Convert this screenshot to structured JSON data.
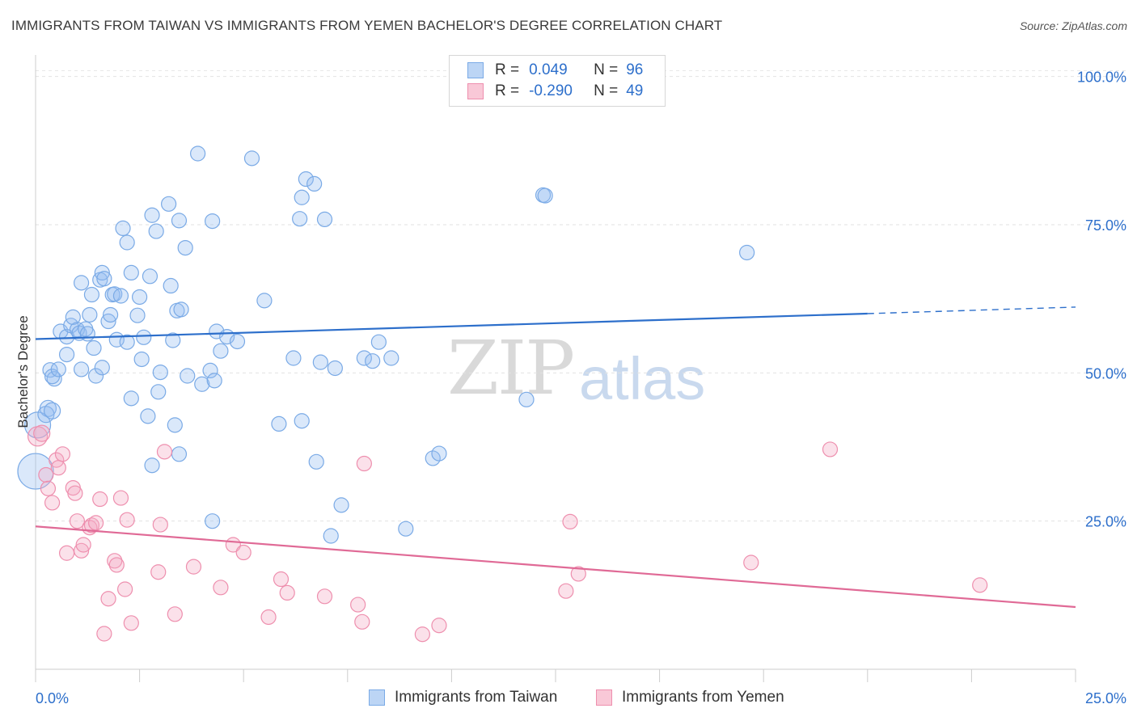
{
  "title": "IMMIGRANTS FROM TAIWAN VS IMMIGRANTS FROM YEMEN BACHELOR'S DEGREE CORRELATION CHART",
  "source": "Source: ZipAtlas.com",
  "watermark": {
    "part1": "ZIP",
    "part2": "atlas"
  },
  "legend_top": [
    {
      "r_label": "R =",
      "r_value": "0.049",
      "n_label": "N =",
      "n_value": "96"
    },
    {
      "r_label": "R =",
      "r_value": "-0.290",
      "n_label": "N =",
      "n_value": "49"
    }
  ],
  "legend_bottom": [
    "Immigrants from Taiwan",
    "Immigrants from Yemen"
  ],
  "colors": {
    "taiwan": "#7aaae6",
    "yemen": "#ee8fae",
    "taiwan_line": "#2d6fcb",
    "yemen_line": "#e06a96",
    "axis_text": "#2d6fcb"
  },
  "chart_data": {
    "type": "scatter",
    "xlabel": "",
    "ylabel": "Bachelor's Degree",
    "xlim": [
      0,
      25
    ],
    "ylim": [
      0,
      102
    ],
    "x_tick_labels": [
      "0.0%",
      "25.0%"
    ],
    "y_tick_labels": [
      "100.0%",
      "75.0%",
      "50.0%",
      "25.0%"
    ],
    "y_ticks": [
      100,
      75,
      50,
      25
    ],
    "grid": true,
    "legend_placement": "top-center",
    "series": [
      {
        "name": "Immigrants from Taiwan",
        "trend": {
          "x0": 0,
          "y0": 55.7,
          "x1": 20,
          "y1": 60.0,
          "dash_to_x": 25,
          "dash_y": 61.1
        },
        "points": [
          [
            0.0,
            33.4,
            22
          ],
          [
            0.05,
            41.2,
            16
          ],
          [
            0.3,
            44.0,
            10
          ],
          [
            0.25,
            43.0,
            10
          ],
          [
            0.4,
            43.6,
            10
          ],
          [
            0.35,
            50.5,
            9
          ],
          [
            0.45,
            49.0,
            9
          ],
          [
            0.4,
            49.4,
            9
          ],
          [
            0.55,
            50.6,
            9
          ],
          [
            0.6,
            57.0,
            9
          ],
          [
            0.75,
            56.1,
            9
          ],
          [
            0.75,
            53.1,
            9
          ],
          [
            0.85,
            58.0,
            9
          ],
          [
            0.9,
            59.4,
            9
          ],
          [
            1.0,
            57.3,
            9
          ],
          [
            1.05,
            56.7,
            9
          ],
          [
            1.1,
            65.2,
            9
          ],
          [
            1.1,
            50.6,
            9
          ],
          [
            1.2,
            57.4,
            9
          ],
          [
            1.25,
            56.6,
            9
          ],
          [
            1.3,
            59.8,
            9
          ],
          [
            1.35,
            63.2,
            9
          ],
          [
            1.4,
            54.2,
            9
          ],
          [
            1.45,
            49.5,
            9
          ],
          [
            1.55,
            65.7,
            9
          ],
          [
            1.6,
            66.9,
            9
          ],
          [
            1.6,
            50.9,
            9
          ],
          [
            1.65,
            65.9,
            9
          ],
          [
            1.75,
            58.7,
            9
          ],
          [
            1.8,
            59.8,
            9
          ],
          [
            1.85,
            63.2,
            9
          ],
          [
            1.9,
            63.3,
            9
          ],
          [
            1.95,
            55.6,
            9
          ],
          [
            2.05,
            63.0,
            9
          ],
          [
            2.1,
            74.4,
            9
          ],
          [
            2.2,
            72.0,
            9
          ],
          [
            2.2,
            55.2,
            9
          ],
          [
            2.3,
            66.9,
            9
          ],
          [
            2.3,
            45.7,
            9
          ],
          [
            2.45,
            59.7,
            9
          ],
          [
            2.5,
            62.8,
            9
          ],
          [
            2.55,
            52.3,
            9
          ],
          [
            2.6,
            56.0,
            9
          ],
          [
            2.7,
            42.7,
            9
          ],
          [
            2.75,
            66.3,
            9
          ],
          [
            2.8,
            76.6,
            9
          ],
          [
            2.8,
            34.4,
            9
          ],
          [
            2.9,
            73.9,
            9
          ],
          [
            2.95,
            46.8,
            9
          ],
          [
            3.0,
            50.1,
            9
          ],
          [
            3.2,
            78.5,
            9
          ],
          [
            3.25,
            64.7,
            9
          ],
          [
            3.3,
            55.5,
            9
          ],
          [
            3.35,
            41.2,
            9
          ],
          [
            3.4,
            60.5,
            9
          ],
          [
            3.5,
            60.7,
            9
          ],
          [
            3.45,
            75.7,
            9
          ],
          [
            3.45,
            36.3,
            9
          ],
          [
            3.6,
            71.1,
            9
          ],
          [
            3.65,
            49.5,
            9
          ],
          [
            3.9,
            87.0,
            9
          ],
          [
            4.0,
            48.1,
            9
          ],
          [
            4.2,
            50.4,
            9
          ],
          [
            4.25,
            75.6,
            9
          ],
          [
            4.25,
            25.0,
            9
          ],
          [
            4.3,
            48.7,
            9
          ],
          [
            4.35,
            57.0,
            9
          ],
          [
            4.45,
            53.7,
            9
          ],
          [
            4.6,
            56.1,
            9
          ],
          [
            4.85,
            55.3,
            9
          ],
          [
            5.2,
            86.2,
            9
          ],
          [
            5.5,
            62.2,
            9
          ],
          [
            5.85,
            41.4,
            9
          ],
          [
            6.2,
            52.5,
            9
          ],
          [
            6.35,
            76.0,
            9
          ],
          [
            6.4,
            41.9,
            9
          ],
          [
            6.4,
            79.6,
            9
          ],
          [
            6.5,
            82.7,
            9
          ],
          [
            6.7,
            81.9,
            9
          ],
          [
            6.75,
            35.0,
            9
          ],
          [
            6.85,
            51.8,
            9
          ],
          [
            6.95,
            75.9,
            9
          ],
          [
            7.1,
            22.5,
            9
          ],
          [
            7.2,
            50.8,
            9
          ],
          [
            7.35,
            27.7,
            9
          ],
          [
            7.9,
            52.5,
            9
          ],
          [
            8.1,
            52.0,
            9
          ],
          [
            8.25,
            55.2,
            9
          ],
          [
            8.55,
            52.5,
            9
          ],
          [
            8.9,
            23.7,
            9
          ],
          [
            9.55,
            35.6,
            9
          ],
          [
            9.7,
            36.4,
            9
          ],
          [
            11.8,
            45.5,
            9
          ],
          [
            12.2,
            80.0,
            9
          ],
          [
            12.25,
            79.9,
            9
          ],
          [
            17.1,
            70.3,
            9
          ]
        ]
      },
      {
        "name": "Immigrants from Yemen",
        "trend": {
          "x0": 0,
          "y0": 24.1,
          "x1": 25,
          "y1": 10.5
        },
        "points": [
          [
            0.05,
            39.3,
            12
          ],
          [
            0.15,
            39.8,
            10
          ],
          [
            0.25,
            32.8,
            9
          ],
          [
            0.3,
            30.5,
            9
          ],
          [
            0.4,
            28.1,
            9
          ],
          [
            0.5,
            35.3,
            9
          ],
          [
            0.55,
            34.0,
            9
          ],
          [
            0.65,
            36.3,
            9
          ],
          [
            0.75,
            19.6,
            9
          ],
          [
            0.9,
            30.6,
            9
          ],
          [
            0.95,
            29.7,
            9
          ],
          [
            1.0,
            25.0,
            9
          ],
          [
            1.1,
            20.0,
            9
          ],
          [
            1.15,
            21.0,
            9
          ],
          [
            1.3,
            23.9,
            9
          ],
          [
            1.35,
            24.3,
            9
          ],
          [
            1.45,
            24.7,
            9
          ],
          [
            1.55,
            28.7,
            9
          ],
          [
            1.65,
            6.0,
            9
          ],
          [
            1.75,
            11.9,
            9
          ],
          [
            1.9,
            18.3,
            9
          ],
          [
            1.95,
            17.6,
            9
          ],
          [
            2.05,
            28.9,
            9
          ],
          [
            2.15,
            13.5,
            9
          ],
          [
            2.2,
            25.2,
            9
          ],
          [
            2.3,
            7.8,
            9
          ],
          [
            2.95,
            16.4,
            9
          ],
          [
            3.0,
            24.4,
            9
          ],
          [
            3.1,
            36.7,
            9
          ],
          [
            3.35,
            9.3,
            9
          ],
          [
            3.8,
            17.3,
            9
          ],
          [
            4.45,
            13.8,
            9
          ],
          [
            4.75,
            21.0,
            9
          ],
          [
            5.0,
            19.7,
            9
          ],
          [
            5.6,
            8.8,
            9
          ],
          [
            5.9,
            15.2,
            9
          ],
          [
            6.05,
            12.9,
            9
          ],
          [
            6.95,
            12.3,
            9
          ],
          [
            7.75,
            10.9,
            9
          ],
          [
            7.85,
            8.0,
            9
          ],
          [
            7.9,
            34.7,
            9
          ],
          [
            9.3,
            5.9,
            9
          ],
          [
            9.7,
            7.4,
            9
          ],
          [
            12.75,
            13.2,
            9
          ],
          [
            12.85,
            24.9,
            9
          ],
          [
            13.05,
            16.1,
            9
          ],
          [
            17.2,
            18.0,
            9
          ],
          [
            19.1,
            37.1,
            9
          ],
          [
            22.7,
            14.2,
            9
          ]
        ]
      }
    ]
  }
}
